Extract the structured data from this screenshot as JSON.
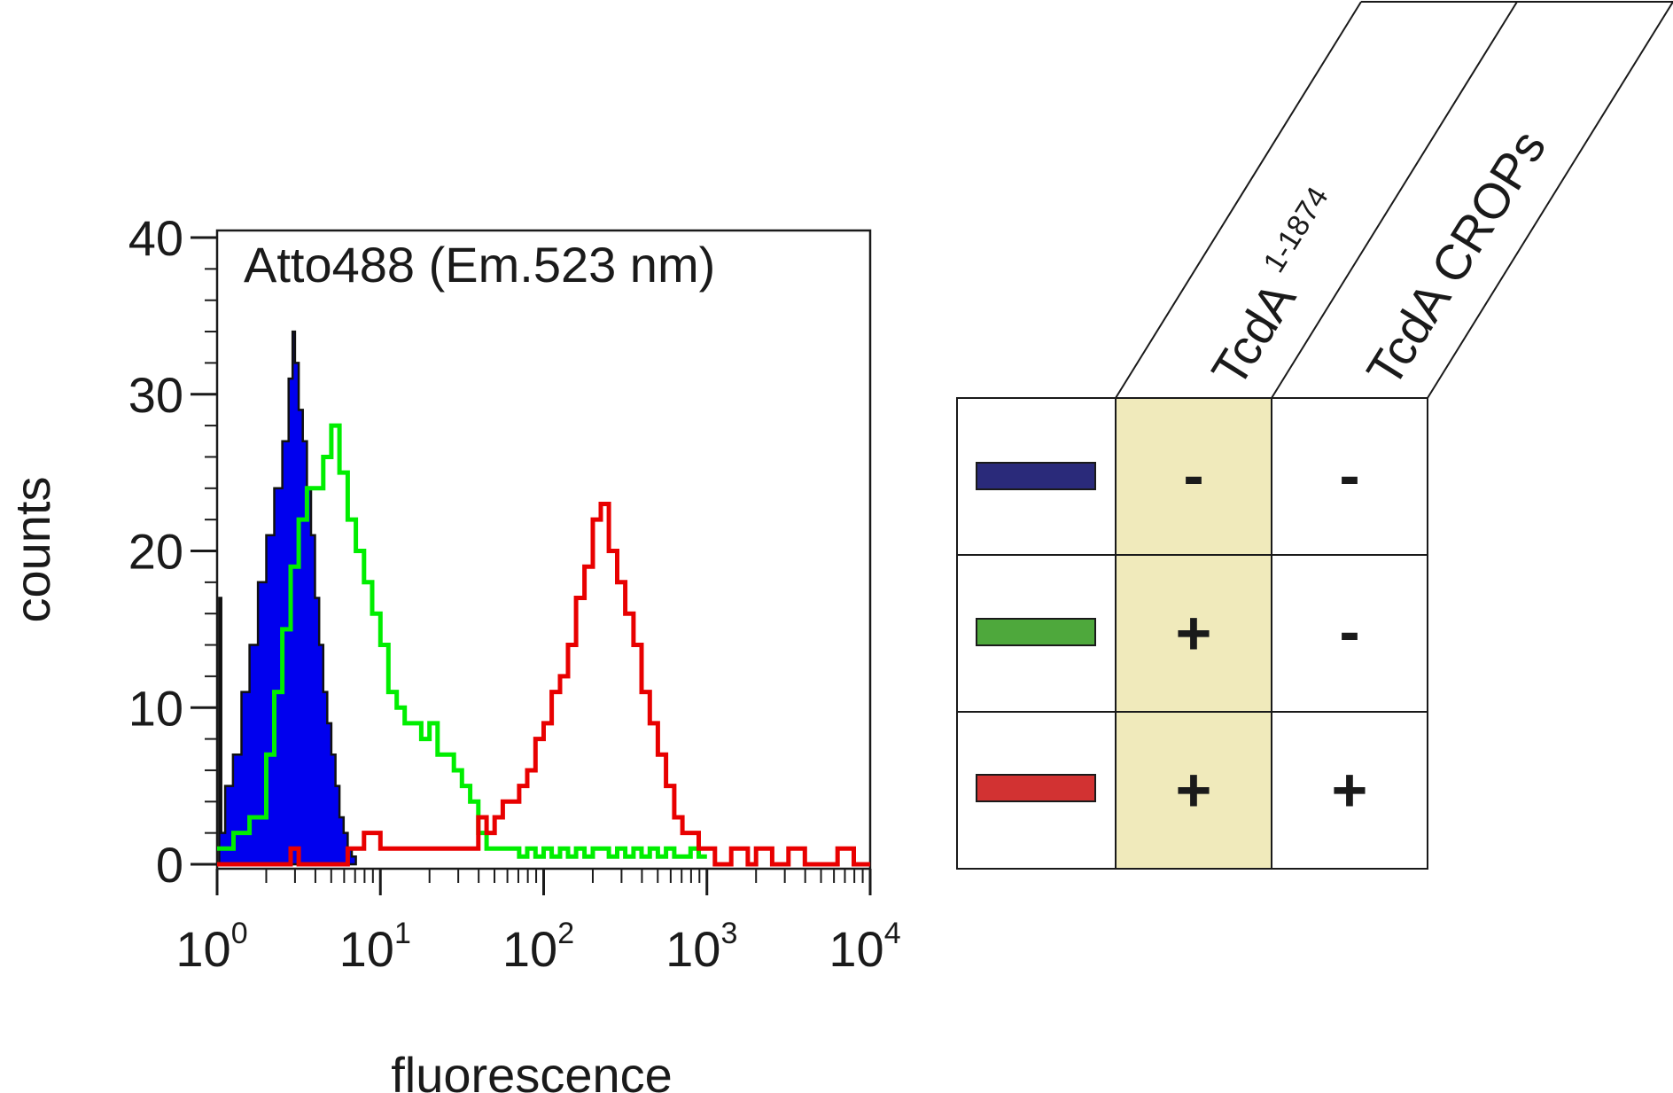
{
  "chart_data": {
    "type": "histogram",
    "title": "Atto488 (Em.523 nm)",
    "xlabel": "fluorescence",
    "ylabel": "counts",
    "xscale": "log",
    "xlim": [
      1,
      10000
    ],
    "ylim": [
      0,
      40
    ],
    "yticks": [
      "0",
      "10",
      "20",
      "30",
      "40"
    ],
    "xticks": [
      {
        "base": "10",
        "exp": "0"
      },
      {
        "base": "10",
        "exp": "1"
      },
      {
        "base": "10",
        "exp": "2"
      },
      {
        "base": "10",
        "exp": "3"
      },
      {
        "base": "10",
        "exp": "4"
      }
    ],
    "series": [
      {
        "color": "#0000ee",
        "style": "filled",
        "points": [
          [
            1.0,
            0
          ],
          [
            1.03,
            17
          ],
          [
            1.06,
            2
          ],
          [
            1.12,
            5
          ],
          [
            1.25,
            7
          ],
          [
            1.41,
            11
          ],
          [
            1.58,
            14
          ],
          [
            1.78,
            18
          ],
          [
            2.0,
            21
          ],
          [
            2.24,
            24
          ],
          [
            2.51,
            27
          ],
          [
            2.74,
            31
          ],
          [
            2.9,
            34
          ],
          [
            3.0,
            32
          ],
          [
            3.16,
            29
          ],
          [
            3.35,
            27
          ],
          [
            3.55,
            24
          ],
          [
            3.76,
            21
          ],
          [
            3.98,
            17
          ],
          [
            4.22,
            14
          ],
          [
            4.47,
            11
          ],
          [
            4.73,
            9
          ],
          [
            5.01,
            7
          ],
          [
            5.31,
            5
          ],
          [
            5.62,
            3
          ],
          [
            5.96,
            2
          ],
          [
            6.31,
            1
          ],
          [
            6.68,
            0.5
          ],
          [
            7.08,
            0
          ]
        ]
      },
      {
        "color": "#00ee00",
        "style": "line",
        "points": [
          [
            1.0,
            1
          ],
          [
            1.26,
            2
          ],
          [
            1.58,
            3
          ],
          [
            2.0,
            7
          ],
          [
            2.24,
            11
          ],
          [
            2.51,
            15
          ],
          [
            2.82,
            19
          ],
          [
            3.16,
            22
          ],
          [
            3.55,
            24
          ],
          [
            3.98,
            24
          ],
          [
            4.47,
            26
          ],
          [
            5.01,
            28
          ],
          [
            5.62,
            25
          ],
          [
            6.31,
            22
          ],
          [
            7.08,
            20
          ],
          [
            7.94,
            18
          ],
          [
            8.91,
            16
          ],
          [
            10.0,
            14
          ],
          [
            11.2,
            11
          ],
          [
            12.6,
            10
          ],
          [
            14.1,
            9
          ],
          [
            15.8,
            9
          ],
          [
            17.8,
            8
          ],
          [
            20.0,
            9
          ],
          [
            22.4,
            7
          ],
          [
            25.1,
            7
          ],
          [
            28.2,
            6
          ],
          [
            31.6,
            5
          ],
          [
            35.5,
            4
          ],
          [
            39.8,
            2
          ],
          [
            44.7,
            1
          ],
          [
            50.1,
            1
          ],
          [
            56.2,
            1
          ],
          [
            63.1,
            1
          ],
          [
            70.8,
            0.5
          ],
          [
            79.4,
            1
          ],
          [
            89.1,
            0.5
          ],
          [
            100,
            1
          ],
          [
            112,
            0.5
          ],
          [
            126,
            1
          ],
          [
            141,
            0.5
          ],
          [
            158,
            1
          ],
          [
            178,
            0.5
          ],
          [
            200,
            1
          ],
          [
            224,
            1
          ],
          [
            251,
            0.5
          ],
          [
            282,
            1
          ],
          [
            316,
            0.5
          ],
          [
            355,
            1
          ],
          [
            398,
            0.5
          ],
          [
            447,
            1
          ],
          [
            501,
            0.5
          ],
          [
            562,
            1
          ],
          [
            631,
            0.5
          ],
          [
            708,
            0.5
          ],
          [
            794,
            1
          ],
          [
            891,
            0.5
          ],
          [
            1000,
            0.5
          ]
        ]
      },
      {
        "color": "#e80000",
        "style": "line",
        "points": [
          [
            1.0,
            0
          ],
          [
            1.41,
            0
          ],
          [
            2.0,
            0
          ],
          [
            2.82,
            1
          ],
          [
            3.16,
            0
          ],
          [
            5.01,
            0
          ],
          [
            6.31,
            1
          ],
          [
            7.94,
            2
          ],
          [
            10.0,
            1
          ],
          [
            12.6,
            1
          ],
          [
            15.8,
            1
          ],
          [
            20.0,
            1
          ],
          [
            25.1,
            1
          ],
          [
            31.6,
            1
          ],
          [
            39.8,
            3
          ],
          [
            44.7,
            2
          ],
          [
            50.1,
            3
          ],
          [
            56.2,
            4
          ],
          [
            63.1,
            4
          ],
          [
            70.8,
            5
          ],
          [
            79.4,
            6
          ],
          [
            89.1,
            8
          ],
          [
            100,
            9
          ],
          [
            112,
            11
          ],
          [
            126,
            12
          ],
          [
            141,
            14
          ],
          [
            158,
            17
          ],
          [
            178,
            19
          ],
          [
            200,
            22
          ],
          [
            224,
            23
          ],
          [
            251,
            20
          ],
          [
            282,
            18
          ],
          [
            316,
            16
          ],
          [
            355,
            14
          ],
          [
            398,
            11
          ],
          [
            447,
            9
          ],
          [
            501,
            7
          ],
          [
            562,
            5
          ],
          [
            631,
            3
          ],
          [
            708,
            2
          ],
          [
            794,
            2
          ],
          [
            891,
            1
          ],
          [
            1000,
            1
          ],
          [
            1120,
            0
          ],
          [
            1410,
            1
          ],
          [
            1780,
            0
          ],
          [
            2000,
            1
          ],
          [
            2510,
            0
          ],
          [
            3160,
            1
          ],
          [
            3980,
            0
          ],
          [
            5010,
            0
          ],
          [
            6310,
            1
          ],
          [
            7940,
            0
          ],
          [
            10000,
            0
          ]
        ]
      }
    ]
  },
  "legend_table": {
    "columns": [
      {
        "base": "TcdA",
        "sup": "1-1874"
      },
      {
        "base": "TcdA CROPs",
        "sup": ""
      }
    ],
    "highlight_color": "#f0eabb",
    "rows": [
      {
        "swatch": "#2a2a7a",
        "values": [
          "-",
          "-"
        ]
      },
      {
        "swatch": "#4ea83c",
        "values": [
          "+",
          "-"
        ]
      },
      {
        "swatch": "#d23232",
        "values": [
          "+",
          "+"
        ]
      }
    ]
  }
}
